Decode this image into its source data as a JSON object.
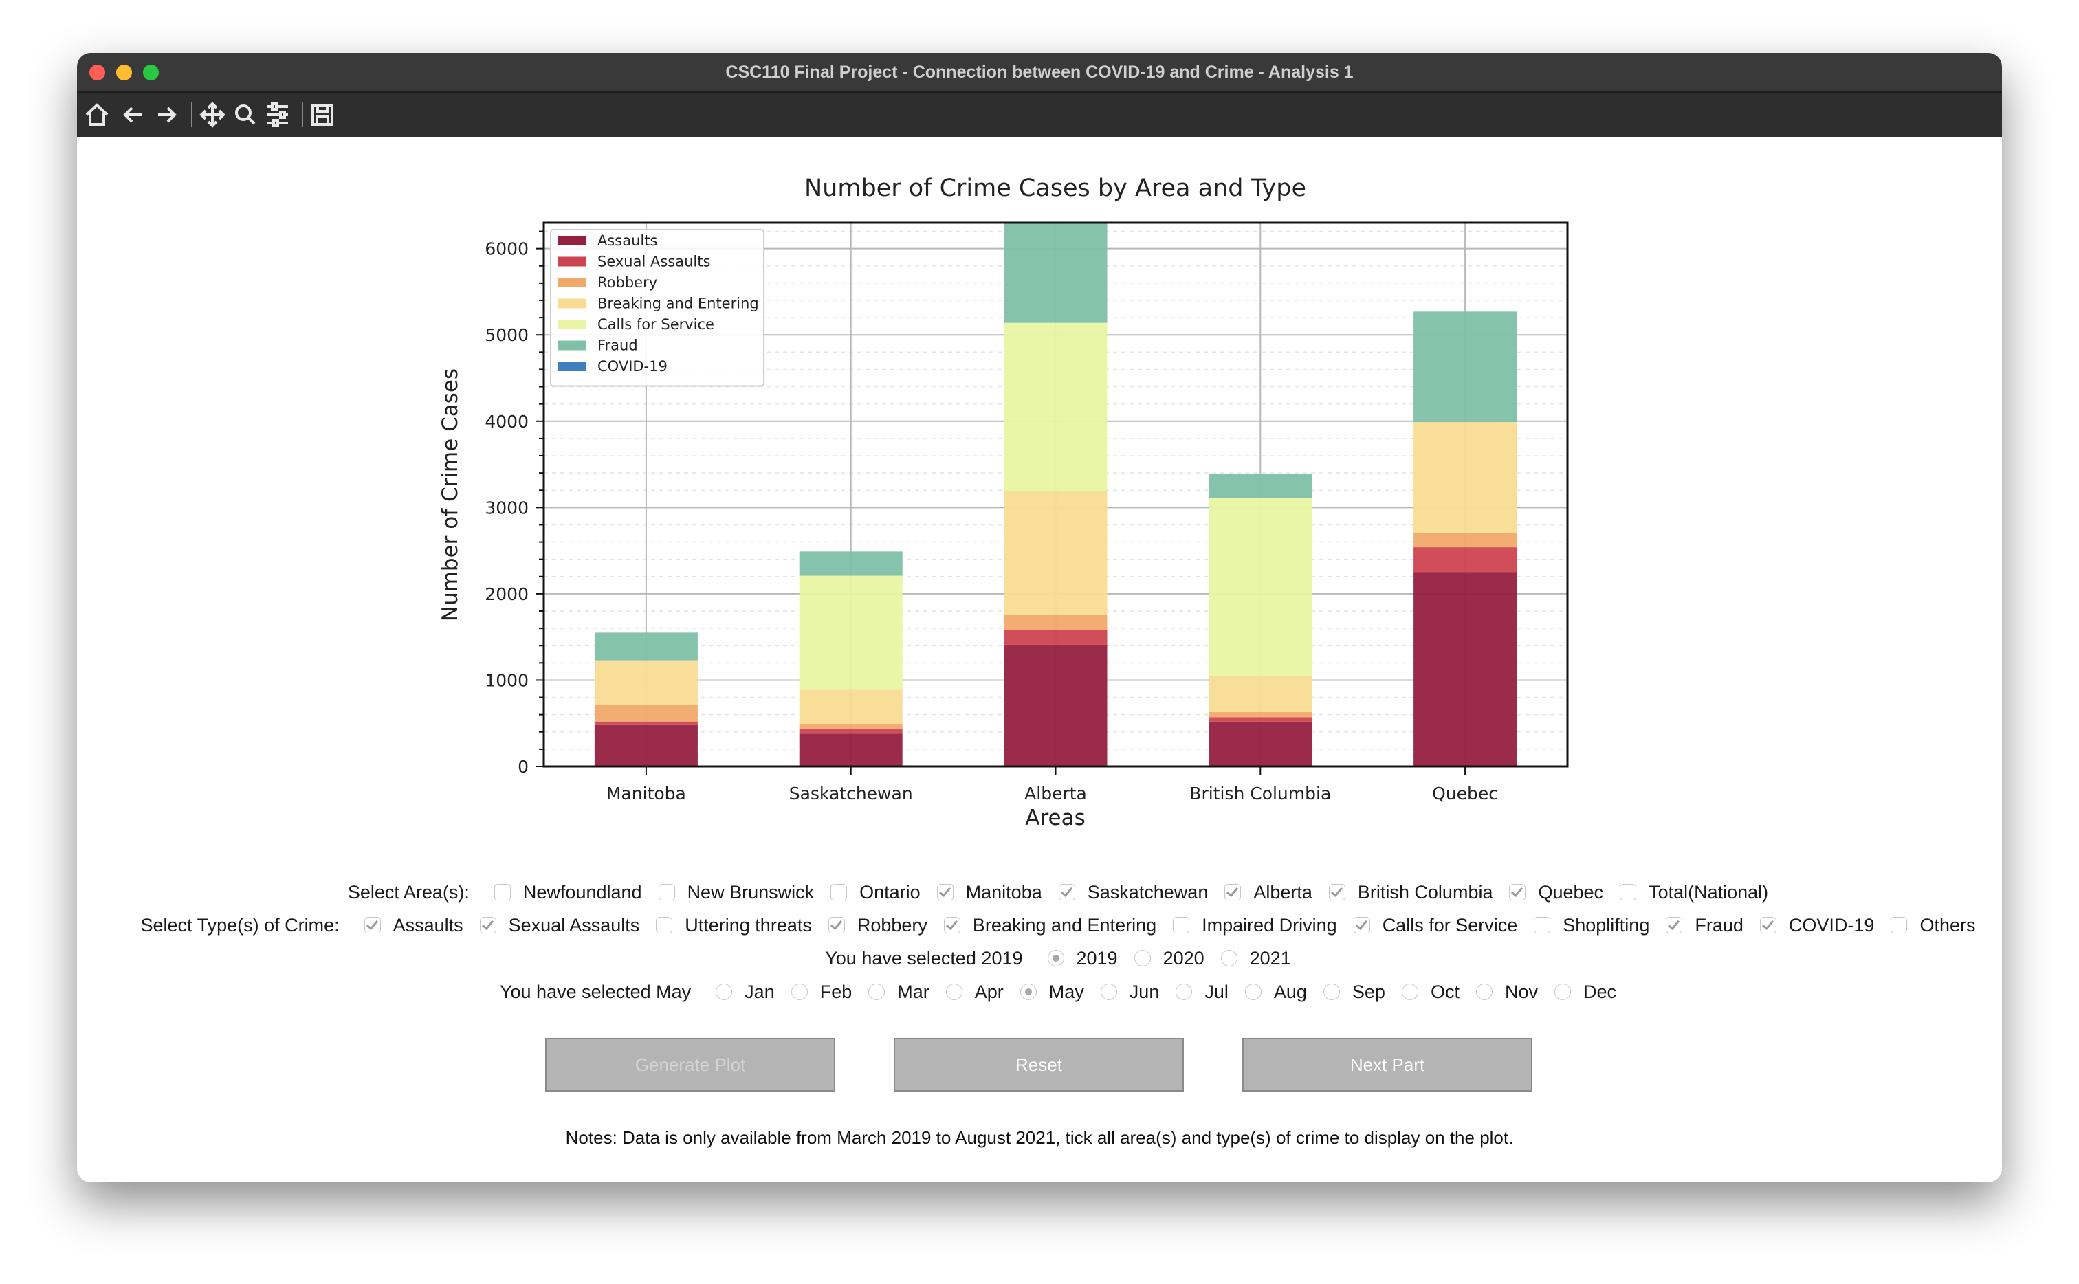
{
  "window": {
    "title": "CSC110 Final Project - Connection between COVID-19 and Crime - Analysis 1"
  },
  "chart_data": {
    "type": "stacked_bar",
    "title": "Number of Crime Cases by Area and Type",
    "xlabel": "Areas",
    "ylabel": "Number of Crime Cases",
    "categories": [
      "Manitoba",
      "Saskatchewan",
      "Alberta",
      "British Columbia",
      "Quebec"
    ],
    "series": [
      {
        "name": "Assaults",
        "color": "#962040",
        "values": [
          480,
          380,
          1410,
          520,
          2250
        ]
      },
      {
        "name": "Sexual Assaults",
        "color": "#cc4450",
        "values": [
          40,
          60,
          170,
          50,
          290
        ]
      },
      {
        "name": "Robbery",
        "color": "#f0a96a",
        "values": [
          190,
          50,
          180,
          60,
          160
        ]
      },
      {
        "name": "Breaking and Entering",
        "color": "#f8dc94",
        "values": [
          520,
          400,
          1430,
          420,
          1290
        ]
      },
      {
        "name": "Calls for Service",
        "color": "#e8f4a2",
        "values": [
          0,
          1320,
          1950,
          2060,
          0
        ]
      },
      {
        "name": "Fraud",
        "color": "#80c0a8",
        "values": [
          320,
          280,
          1300,
          280,
          1280
        ]
      },
      {
        "name": "COVID-19",
        "color": "#3e7fbd",
        "values": [
          0,
          0,
          0,
          0,
          0
        ]
      }
    ],
    "ylim": [
      0,
      6300
    ],
    "yticks": [
      0,
      1000,
      2000,
      3000,
      4000,
      5000,
      6000
    ],
    "yminorticks": [
      200,
      400,
      600,
      800,
      1200,
      1400,
      1600,
      1800,
      2200,
      2400,
      2600,
      2800,
      3200,
      3400,
      3600,
      3800,
      4200,
      4400,
      4600,
      4800,
      5200,
      5400,
      5600,
      5800,
      6200
    ],
    "grid": true,
    "legend": "upper left"
  },
  "controls": {
    "areas": {
      "label": "Select Area(s):",
      "options": [
        {
          "label": "Newfoundland",
          "checked": false
        },
        {
          "label": "New Brunswick",
          "checked": false
        },
        {
          "label": "Ontario",
          "checked": false
        },
        {
          "label": "Manitoba",
          "checked": true
        },
        {
          "label": "Saskatchewan",
          "checked": true
        },
        {
          "label": "Alberta",
          "checked": true
        },
        {
          "label": "British Columbia",
          "checked": true
        },
        {
          "label": "Quebec",
          "checked": true
        },
        {
          "label": "Total(National)",
          "checked": false
        }
      ]
    },
    "types": {
      "label": "Select Type(s) of Crime:",
      "options": [
        {
          "label": "Assaults",
          "checked": true
        },
        {
          "label": "Sexual Assaults",
          "checked": true
        },
        {
          "label": "Uttering threats",
          "checked": false
        },
        {
          "label": "Robbery",
          "checked": true
        },
        {
          "label": "Breaking and Entering",
          "checked": true
        },
        {
          "label": "Impaired Driving",
          "checked": false
        },
        {
          "label": "Calls for Service",
          "checked": true
        },
        {
          "label": "Shoplifting",
          "checked": false
        },
        {
          "label": "Fraud",
          "checked": true
        },
        {
          "label": "COVID-19",
          "checked": true
        },
        {
          "label": "Others",
          "checked": false
        }
      ]
    },
    "year": {
      "label": "You have selected 2019",
      "options": [
        {
          "label": "2019",
          "selected": true
        },
        {
          "label": "2020",
          "selected": false
        },
        {
          "label": "2021",
          "selected": false
        }
      ]
    },
    "month": {
      "label": "You have selected May",
      "options": [
        {
          "label": "Jan",
          "selected": false
        },
        {
          "label": "Feb",
          "selected": false
        },
        {
          "label": "Mar",
          "selected": false
        },
        {
          "label": "Apr",
          "selected": false
        },
        {
          "label": "May",
          "selected": true
        },
        {
          "label": "Jun",
          "selected": false
        },
        {
          "label": "Jul",
          "selected": false
        },
        {
          "label": "Aug",
          "selected": false
        },
        {
          "label": "Sep",
          "selected": false
        },
        {
          "label": "Oct",
          "selected": false
        },
        {
          "label": "Nov",
          "selected": false
        },
        {
          "label": "Dec",
          "selected": false
        }
      ]
    },
    "buttons": [
      {
        "label": "Generate Plot",
        "enabled": false
      },
      {
        "label": "Reset",
        "enabled": true
      },
      {
        "label": "Next Part",
        "enabled": true
      }
    ],
    "notes": "Notes: Data is only available from March 2019 to August 2021, tick all area(s) and type(s) of crime to display on the plot."
  }
}
